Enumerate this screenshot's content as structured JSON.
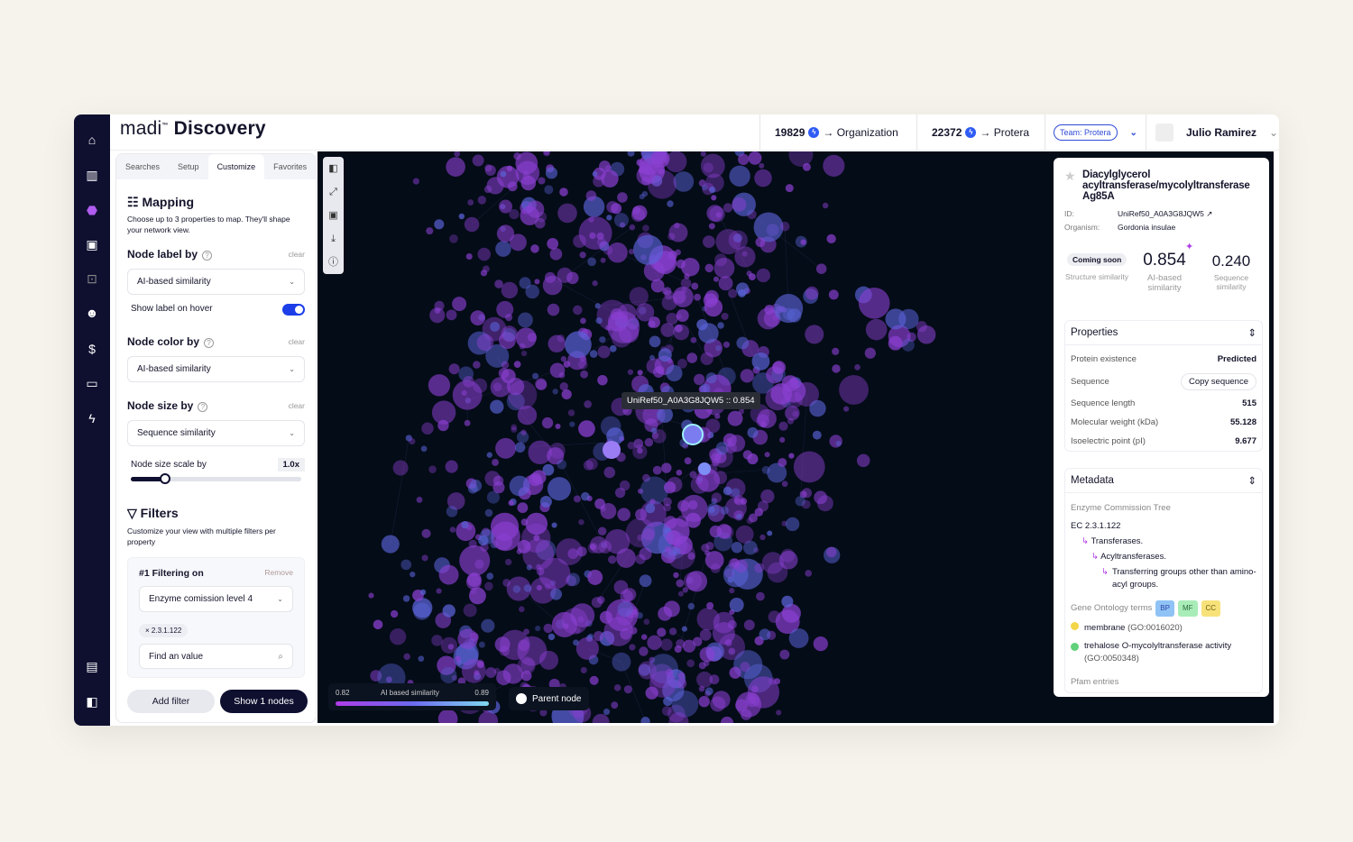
{
  "header": {
    "logo": "madi",
    "logo_tm": "™",
    "app": "Discovery",
    "org_count": "19829",
    "org_label": "→ Organization",
    "team_count": "22372",
    "team_label": "→ Protera",
    "team_badge": "Team: Protera",
    "user": "Julio Ramirez"
  },
  "nav": {
    "icons": [
      "home-icon",
      "chart-icon",
      "discovery-icon",
      "monitor-icon",
      "robot-icon",
      "users-icon",
      "billing-icon",
      "card-icon",
      "bolt-icon",
      "chat-icon",
      "collapse-icon"
    ]
  },
  "left": {
    "tabs": [
      "Searches",
      "Setup",
      "Customize",
      "Favorites"
    ],
    "active_tab": "Customize",
    "mapping_title": "Mapping",
    "mapping_desc": "Choose up to 3 properties to map. They'll shape your network view.",
    "node_label_by": "Node label by",
    "node_label_value": "AI-based similarity",
    "show_label": "Show label on hover",
    "show_label_on": true,
    "node_color_by": "Node color by",
    "node_color_value": "AI-based similarity",
    "node_size_by": "Node size by",
    "node_size_value": "Sequence similarity",
    "clear": "clear",
    "scale_label": "Node size scale by",
    "scale_value": "1.0x",
    "scale_fraction": 0.2,
    "filters_title": "Filters",
    "filters_desc": "Customize your view with multiple filters per property",
    "filter_title": "#1 Filtering on",
    "remove": "Remove",
    "filter_value": "Enzyme comission level 4",
    "chip": "2.3.1.122",
    "find_placeholder": "Find an value",
    "add_filter": "Add filter",
    "show_nodes": "Show 1 nodes"
  },
  "canvas": {
    "tooltip": "UniRef50_A0A3G8JQW5 :: 0.854",
    "legend_min": "0.82",
    "legend_title": "AI based similarity",
    "legend_max": "0.89",
    "parent_node": "Parent node",
    "colors": {
      "bg": "#040c18",
      "node_purple": "#8a3fd1",
      "node_blue": "#5a63d8"
    }
  },
  "detail": {
    "title": "Diacylglycerol acyltransferase/mycolyltransferase Ag85A",
    "id_label": "ID:",
    "id": "UniRef50_A0A3G8JQW5",
    "org_label": "Organism:",
    "organism": "Gordonia insulae",
    "coming_soon": "Coming soon",
    "structure": "Structure similarity",
    "ai_score": "0.854",
    "ai_label": "AI-based similarity",
    "seq_score": "0.240",
    "seq_label": "Sequence similarity",
    "properties_title": "Properties",
    "properties": [
      {
        "k": "Protein existence",
        "v": "Predicted"
      },
      {
        "k": "Sequence",
        "v": "Copy sequence"
      },
      {
        "k": "Sequence length",
        "v": "515"
      },
      {
        "k": "Molecular weight (kDa)",
        "v": "55.128"
      },
      {
        "k": "Isoelectric point (pI)",
        "v": "9.677"
      }
    ],
    "metadata_title": "Metadata",
    "ec_tree_label": "Enzyme Commission Tree",
    "ec": "EC 2.3.1.122",
    "ec_levels": [
      "Transferases.",
      "Acyltransferases.",
      "Transferring groups other than amino-acyl groups."
    ],
    "go_label": "Gene Ontology terms",
    "go_badges": [
      "BP",
      "MF",
      "CC"
    ],
    "go_terms": [
      {
        "name": "membrane",
        "id": "(GO:0016020)",
        "color": "#f3d548"
      },
      {
        "name": "trehalose O-mycolyltransferase activity",
        "id": "(GO:0050348)",
        "color": "#5fd17a"
      }
    ],
    "pfam_label": "Pfam entries"
  }
}
